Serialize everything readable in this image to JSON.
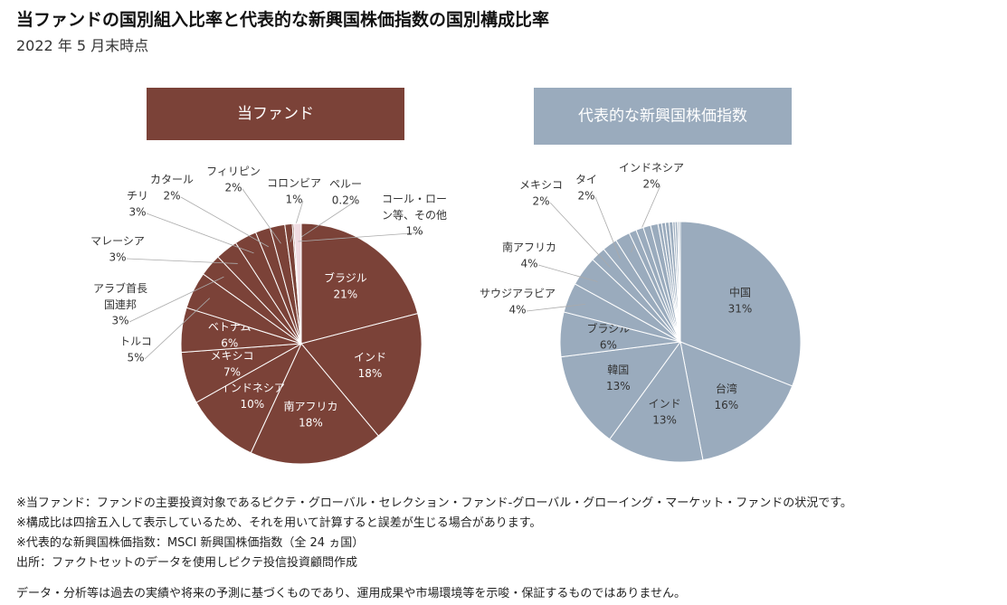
{
  "title": "当ファンドの国別組入比率と代表的な新興国株価指数の国別構成比率",
  "subtitle": "2022 年 5 月末時点",
  "notes": [
    "※当ファンド：ファンドの主要投資対象であるピクテ・グローバル・セレクション・ファンド-グローバル・グローイング・マーケット・ファンドの状況です。",
    "※構成比は四捨五入して表示しているため、それを用いて計算すると誤差が生じる場合があります。",
    "※代表的な新興国株価指数：MSCI 新興国株価指数（全 24 ヵ国）",
    "出所：ファクトセットのデータを使用しピクテ投信投資顧問作成",
    "データ・分析等は過去の実績や将来の予測に基づくものであり、運用成果や市場環境等を示唆・保証するものではありません。"
  ],
  "chart_data": [
    {
      "type": "pie",
      "title": "当ファンド",
      "header_color": "#7b4238",
      "categories": [
        "ブラジル",
        "インド",
        "南アフリカ",
        "インドネシア",
        "メキシコ",
        "ベトナム",
        "トルコ",
        "アラブ首長\n国連邦",
        "マレーシア",
        "チリ",
        "カタール",
        "フィリピン",
        "コロンビア",
        "ペルー",
        "コール・ロー\nン等、その他"
      ],
      "values": [
        21,
        18,
        18,
        10,
        7,
        6,
        5,
        3,
        3,
        3,
        2,
        2,
        1,
        0.2,
        1
      ],
      "value_labels": [
        "21%",
        "18%",
        "18%",
        "10%",
        "7%",
        "6%",
        "5%",
        "3%",
        "3%",
        "3%",
        "2%",
        "2%",
        "1%",
        "0.2%",
        "1%"
      ],
      "colors": [
        "#7b4238",
        "#7b4238",
        "#7b4238",
        "#7b4238",
        "#7b4238",
        "#7b4238",
        "#7b4238",
        "#7b4238",
        "#7b4238",
        "#7b4238",
        "#7b4238",
        "#7b4238",
        "#7b4238",
        "#7b4238",
        "#f0dce2"
      ]
    },
    {
      "type": "pie",
      "title": "代表的な新興国株価指数",
      "header_color": "#9aabbd",
      "categories": [
        "中国",
        "台湾",
        "インド",
        "韓国",
        "ブラジル",
        "サウジアラビア",
        "南アフリカ",
        "メキシコ",
        "タイ",
        "インドネシア",
        null,
        null,
        null,
        null,
        null,
        null,
        null,
        null,
        null,
        null,
        null,
        null
      ],
      "values": [
        31,
        16,
        13,
        13,
        6,
        4,
        4,
        2,
        2,
        2,
        1,
        1,
        1,
        1,
        0.5,
        0.5,
        0.5,
        0.5,
        0.3,
        0.3,
        0.2,
        0.2
      ],
      "value_labels": [
        "31%",
        "16%",
        "13%",
        "13%",
        "6%",
        "4%",
        "4%",
        "2%",
        "2%",
        "2%",
        null,
        null,
        null,
        null,
        null,
        null,
        null,
        null,
        null,
        null,
        null,
        null
      ],
      "color": "#9aabbd"
    }
  ]
}
